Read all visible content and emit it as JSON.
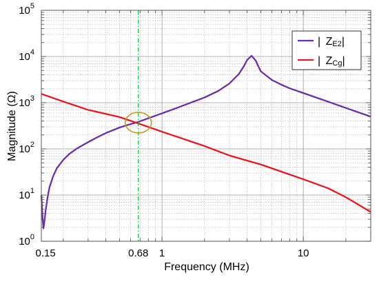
{
  "chart_data": {
    "type": "line",
    "xlabel": "Frequency (MHz)",
    "ylabel": "Magnitude (Ω)",
    "x_scale": "log",
    "y_scale": "log",
    "xlim": [
      0.14,
      30
    ],
    "ylim": [
      1,
      100000
    ],
    "grid": true,
    "legend_position": "top-right",
    "x_tick_labels": [
      {
        "value": 0.15,
        "label": "0.15"
      },
      {
        "value": 1,
        "label": "1"
      },
      {
        "value": 10,
        "label": "10"
      }
    ],
    "y_tick_labels": [
      {
        "value": 1,
        "base": "10",
        "exp": "0"
      },
      {
        "value": 10,
        "base": "10",
        "exp": "1"
      },
      {
        "value": 100,
        "base": "10",
        "exp": "2"
      },
      {
        "value": 1000,
        "base": "10",
        "exp": "3"
      },
      {
        "value": 10000,
        "base": "10",
        "exp": "4"
      },
      {
        "value": 100000,
        "base": "10",
        "exp": "5"
      }
    ],
    "marker_line": {
      "x": 0.68,
      "label": "0.68",
      "color": "#00cc33"
    },
    "crossing_circle": {
      "x": 0.68,
      "y": 370,
      "color": "#c8961e"
    },
    "series": [
      {
        "name_main": "Z",
        "name_sub": "E2",
        "color": "#6a2fa8",
        "x": [
          0.14,
          0.143,
          0.145,
          0.148,
          0.15,
          0.155,
          0.16,
          0.17,
          0.18,
          0.2,
          0.22,
          0.25,
          0.3,
          0.35,
          0.4,
          0.5,
          0.6,
          0.68,
          0.8,
          1.0,
          1.2,
          1.5,
          2.0,
          2.5,
          3.0,
          3.5,
          3.8,
          4.0,
          4.3,
          4.6,
          5.0,
          6.0,
          7.0,
          8.0,
          10,
          15,
          20,
          30
        ],
        "y": [
          10,
          3,
          1.9,
          3,
          4.5,
          9,
          15,
          26,
          38,
          58,
          77,
          102,
          140,
          180,
          220,
          290,
          345,
          385,
          460,
          590,
          720,
          930,
          1300,
          1800,
          2600,
          4200,
          6200,
          8400,
          10400,
          8200,
          4800,
          3100,
          2450,
          2050,
          1620,
          1050,
          770,
          500
        ]
      },
      {
        "name_main": "Z",
        "name_sub": "Cg",
        "color": "#e8161e",
        "x": [
          0.14,
          0.2,
          0.3,
          0.5,
          0.68,
          1.0,
          2.0,
          3.0,
          5.0,
          10,
          15,
          20,
          25,
          30
        ],
        "y": [
          1550,
          1060,
          700,
          490,
          355,
          235,
          115,
          72,
          46,
          22,
          14,
          9,
          6,
          4.3
        ]
      }
    ]
  }
}
